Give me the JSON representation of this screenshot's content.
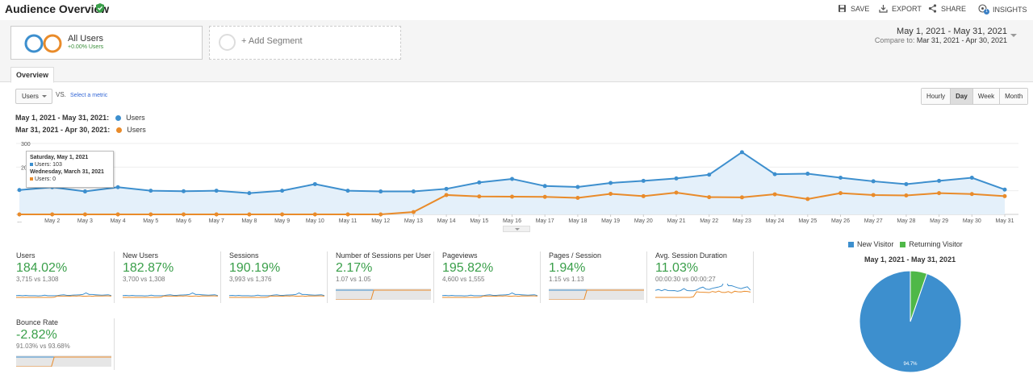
{
  "header": {
    "title": "Audience Overview",
    "actions": {
      "save": "SAVE",
      "export": "EXPORT",
      "share": "SHARE",
      "insights": "INSIGHTS",
      "insights_badge": "1"
    }
  },
  "segments": {
    "all_users": {
      "label": "All Users",
      "change": "+0.00% Users"
    },
    "add_segment": "+ Add Segment"
  },
  "date_range": {
    "primary": "May 1, 2021 - May 31, 2021",
    "compare_prefix": "Compare to: ",
    "compare": "Mar 31, 2021 - Apr 30, 2021"
  },
  "tabs": {
    "overview": "Overview"
  },
  "controls": {
    "metric": "Users",
    "vs": "VS.",
    "select_metric": "Select a metric",
    "granularity": [
      "Hourly",
      "Day",
      "Week",
      "Month"
    ],
    "active_granularity": "Day"
  },
  "legend": [
    {
      "range": "May 1, 2021 - May 31, 2021:",
      "label": "Users",
      "color": "#3d8fce"
    },
    {
      "range": "Mar 31, 2021 - Apr 30, 2021:",
      "label": "Users",
      "color": "#e98b2a"
    }
  ],
  "tooltip": {
    "date1": "Saturday, May 1, 2021",
    "value1": "Users: 103",
    "date2": "Wednesday, March 31, 2021",
    "value2": "Users: 0"
  },
  "chart_data": {
    "type": "line",
    "y_ticks": [
      "300",
      "200",
      "100"
    ],
    "ylim": [
      0,
      300
    ],
    "x": [
      "...",
      "May 2",
      "May 3",
      "May 4",
      "May 5",
      "May 6",
      "May 7",
      "May 8",
      "May 9",
      "May 10",
      "May 11",
      "May 12",
      "May 13",
      "May 14",
      "May 15",
      "May 16",
      "May 17",
      "May 18",
      "May 19",
      "May 20",
      "May 21",
      "May 22",
      "May 23",
      "May 24",
      "May 25",
      "May 26",
      "May 27",
      "May 28",
      "May 29",
      "May 30",
      "May 31"
    ],
    "series": [
      {
        "name": "Users (May 1, 2021 - May 31, 2021)",
        "color": "#3d8fce",
        "values": [
          103,
          115,
          97,
          115,
          100,
          98,
          100,
          90,
          100,
          128,
          100,
          97,
          97,
          108,
          135,
          150,
          120,
          116,
          133,
          142,
          152,
          168,
          263,
          170,
          172,
          155,
          140,
          128,
          142,
          155,
          105
        ]
      },
      {
        "name": "Users (Mar 31, 2021 - Apr 30, 2021)",
        "color": "#e98b2a",
        "values": [
          0,
          0,
          0,
          0,
          0,
          0,
          0,
          0,
          0,
          0,
          0,
          0,
          10,
          82,
          76,
          75,
          74,
          70,
          87,
          77,
          92,
          73,
          72,
          85,
          65,
          90,
          82,
          80,
          90,
          86,
          77
        ]
      }
    ]
  },
  "kpis": [
    {
      "name": "Users",
      "value": "184.02%",
      "compare": "3,715 vs 1,308"
    },
    {
      "name": "New Users",
      "value": "182.87%",
      "compare": "3,700 vs 1,308"
    },
    {
      "name": "Sessions",
      "value": "190.19%",
      "compare": "3,993 vs 1,376"
    },
    {
      "name": "Number of Sessions per User",
      "value": "2.17%",
      "compare": "1.07 vs 1.05"
    },
    {
      "name": "Pageviews",
      "value": "195.82%",
      "compare": "4,600 vs 1,555"
    },
    {
      "name": "Pages / Session",
      "value": "1.94%",
      "compare": "1.15 vs 1.13"
    },
    {
      "name": "Avg. Session Duration",
      "value": "11.03%",
      "compare": "00:00:30 vs 00:00:27"
    },
    {
      "name": "Bounce Rate",
      "value": "-2.82%",
      "compare": "91.03% vs 93.68%"
    }
  ],
  "pie": {
    "legend": [
      {
        "label": "New Visitor",
        "color": "#3d8fce"
      },
      {
        "label": "Returning Visitor",
        "color": "#4fb848"
      }
    ],
    "title": "May 1, 2021 - May 31, 2021",
    "values": [
      94.7,
      5.3
    ],
    "label": "94.7%"
  }
}
